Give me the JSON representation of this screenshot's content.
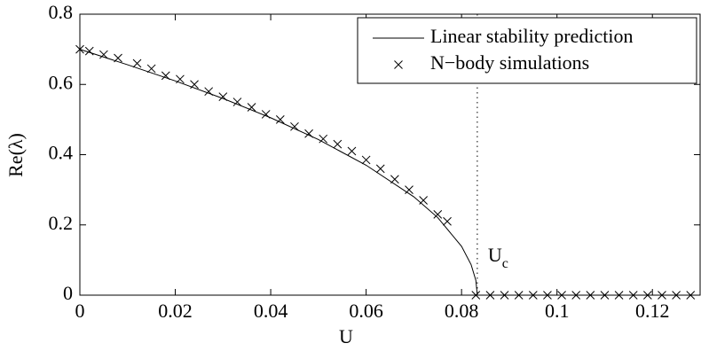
{
  "chart_data": {
    "type": "line-scatter",
    "xlabel": "U",
    "ylabel": "Re(λ)",
    "xlim": [
      0,
      0.13
    ],
    "ylim": [
      0,
      0.8
    ],
    "xticks": [
      0,
      0.02,
      0.04,
      0.06,
      0.08,
      0.1,
      0.12
    ],
    "yticks": [
      0,
      0.2,
      0.4,
      0.6,
      0.8
    ],
    "legend": "upper right",
    "series": [
      {
        "name": "Linear stability prediction",
        "kind": "line",
        "color": "#000000",
        "x": [
          0,
          0.01,
          0.02,
          0.03,
          0.04,
          0.05,
          0.06,
          0.07,
          0.075,
          0.08,
          0.082,
          0.083,
          0.0833,
          0.13
        ],
        "values": [
          0.7,
          0.656,
          0.61,
          0.56,
          0.505,
          0.443,
          0.37,
          0.28,
          0.221,
          0.139,
          0.087,
          0.042,
          0,
          0
        ]
      },
      {
        "name": "N−body simulations",
        "kind": "scatter",
        "color": "#000000",
        "x": [
          0,
          0.002,
          0.005,
          0.008,
          0.012,
          0.015,
          0.018,
          0.021,
          0.024,
          0.027,
          0.03,
          0.033,
          0.036,
          0.039,
          0.042,
          0.045,
          0.048,
          0.051,
          0.054,
          0.057,
          0.06,
          0.063,
          0.066,
          0.069,
          0.072,
          0.075,
          0.077,
          0.083,
          0.086,
          0.089,
          0.092,
          0.095,
          0.098,
          0.101,
          0.104,
          0.107,
          0.11,
          0.113,
          0.116,
          0.119,
          0.122,
          0.125,
          0.128
        ],
        "values": [
          0.7,
          0.695,
          0.685,
          0.675,
          0.66,
          0.645,
          0.625,
          0.615,
          0.6,
          0.58,
          0.565,
          0.55,
          0.535,
          0.515,
          0.5,
          0.48,
          0.46,
          0.445,
          0.43,
          0.41,
          0.385,
          0.36,
          0.33,
          0.3,
          0.27,
          0.23,
          0.21,
          0,
          0,
          0,
          0,
          0,
          0,
          0,
          0,
          0,
          0,
          0,
          0,
          0,
          0,
          0,
          0
        ]
      }
    ],
    "critical_line": {
      "x": 0.0833,
      "label": "U",
      "label_subscript": "c"
    }
  }
}
